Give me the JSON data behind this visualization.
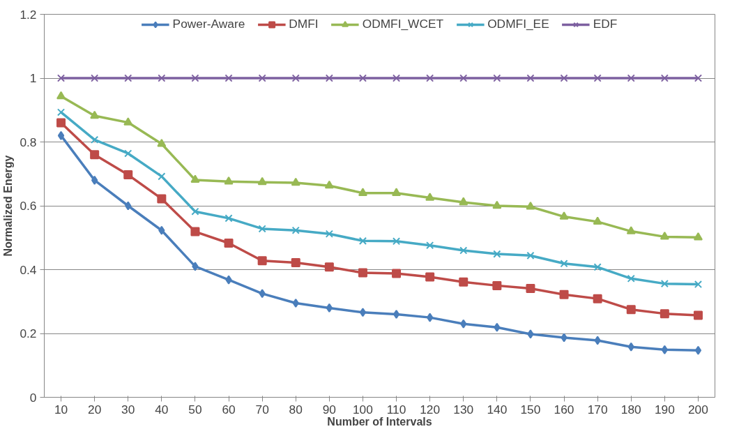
{
  "chart_data": {
    "type": "line",
    "xlabel": "Number of Intervals",
    "ylabel": "Normalized Energy",
    "categories": [
      "10",
      "20",
      "30",
      "40",
      "50",
      "60",
      "70",
      "80",
      "90",
      "100",
      "110",
      "120",
      "130",
      "140",
      "150",
      "160",
      "170",
      "180",
      "190",
      "200"
    ],
    "series": [
      {
        "name": "Power-Aware",
        "color": "#4a7ebb",
        "marker": "diamond",
        "values": [
          0.82,
          0.68,
          0.6,
          0.523,
          0.41,
          0.368,
          0.325,
          0.295,
          0.28,
          0.266,
          0.26,
          0.25,
          0.23,
          0.219,
          0.198,
          0.187,
          0.178,
          0.158,
          0.149,
          0.147
        ]
      },
      {
        "name": "DMFI",
        "color": "#be4b48",
        "marker": "square",
        "values": [
          0.86,
          0.76,
          0.697,
          0.622,
          0.519,
          0.483,
          0.428,
          0.422,
          0.408,
          0.39,
          0.388,
          0.377,
          0.361,
          0.35,
          0.341,
          0.322,
          0.309,
          0.275,
          0.262,
          0.257
        ]
      },
      {
        "name": "ODMFI_WCET",
        "color": "#98b954",
        "marker": "triangle",
        "values": [
          0.943,
          0.882,
          0.861,
          0.794,
          0.681,
          0.676,
          0.674,
          0.672,
          0.663,
          0.64,
          0.64,
          0.625,
          0.611,
          0.6,
          0.597,
          0.566,
          0.55,
          0.52,
          0.503,
          0.501
        ]
      },
      {
        "name": "ODMFI_EE",
        "color": "#46aac5",
        "marker": "cross",
        "values": [
          0.893,
          0.807,
          0.764,
          0.692,
          0.582,
          0.561,
          0.528,
          0.523,
          0.512,
          0.49,
          0.489,
          0.476,
          0.46,
          0.449,
          0.444,
          0.419,
          0.408,
          0.372,
          0.356,
          0.354
        ]
      },
      {
        "name": "EDF",
        "color": "#7d60a0",
        "marker": "cross",
        "values": [
          1,
          1,
          1,
          1,
          1,
          1,
          1,
          1,
          1,
          1,
          1,
          1,
          1,
          1,
          1,
          1,
          1,
          1,
          1,
          1
        ]
      }
    ],
    "ylim": [
      0,
      1.2
    ],
    "yticks": [
      0,
      0.2,
      0.4,
      0.6,
      0.8,
      1,
      1.2
    ],
    "grid": "y",
    "legend": "top",
    "line_style": "solid"
  }
}
